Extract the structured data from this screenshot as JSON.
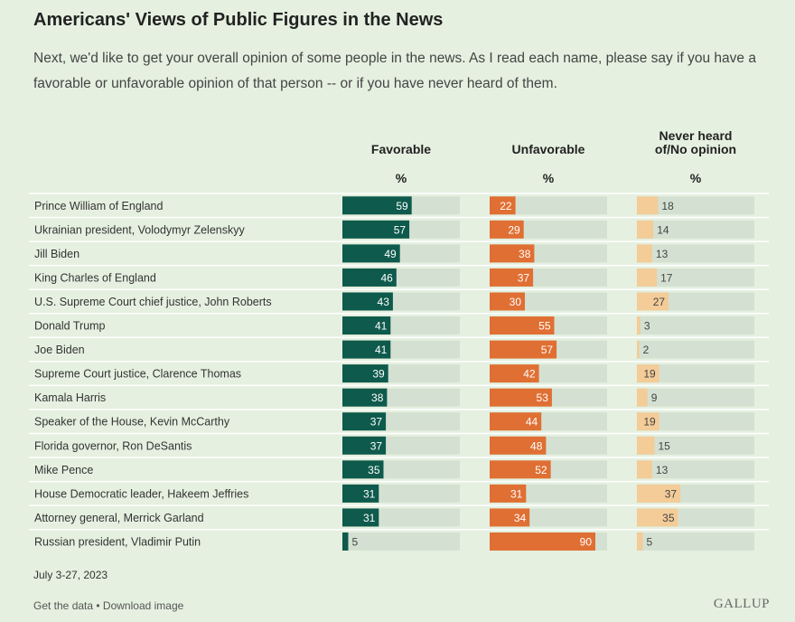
{
  "chart_data": {
    "type": "bar",
    "title": "Americans' Views of Public Figures in the News",
    "subtitle": "Next, we'd like to get your overall opinion of some people in the news. As I read each name, please say if you have a favorable or unfavorable opinion of that person -- or if you have never heard of them.",
    "columns": [
      {
        "key": "favorable",
        "label_lines": [
          "Favorable"
        ],
        "unit": "%",
        "color": "#0e5a4c",
        "track": "#d4e1d2",
        "label_inside_color": "#ffffff",
        "label_outside_color": "#444444"
      },
      {
        "key": "unfavorable",
        "label_lines": [
          "Unfavorable"
        ],
        "unit": "%",
        "color": "#e06f33",
        "track": "#d4e1d2",
        "label_inside_color": "#ffffff",
        "label_outside_color": "#444444"
      },
      {
        "key": "never_heard",
        "label_lines": [
          "Never heard",
          "of/No opinion"
        ],
        "unit": "%",
        "color": "#f3cc98",
        "track": "#d4e1d2",
        "label_inside_color": "#444444",
        "label_outside_color": "#444444"
      }
    ],
    "categories": [
      "Prince William of England",
      "Ukrainian president, Volodymyr Zelenskyy",
      "Jill Biden",
      "King Charles of England",
      "U.S. Supreme Court chief justice, John Roberts",
      "Donald Trump",
      "Joe Biden",
      "Supreme Court justice, Clarence Thomas",
      "Kamala Harris",
      "Speaker of the House, Kevin McCarthy",
      "Florida governor, Ron DeSantis",
      "Mike Pence",
      "House Democratic leader, Hakeem Jeffries",
      "Attorney general, Merrick Garland",
      "Russian president, Vladimir Putin"
    ],
    "series": [
      {
        "name": "Favorable",
        "values": [
          59,
          57,
          49,
          46,
          43,
          41,
          41,
          39,
          38,
          37,
          37,
          35,
          31,
          31,
          5
        ]
      },
      {
        "name": "Unfavorable",
        "values": [
          22,
          29,
          38,
          37,
          30,
          55,
          57,
          42,
          53,
          44,
          48,
          52,
          31,
          34,
          90
        ]
      },
      {
        "name": "Never heard of/No opinion",
        "values": [
          18,
          14,
          13,
          17,
          27,
          3,
          2,
          19,
          9,
          19,
          15,
          13,
          37,
          35,
          5
        ]
      }
    ],
    "xlim": [
      0,
      100
    ]
  },
  "footer": {
    "date": "July 3-27, 2023",
    "get_data": "Get the data",
    "separator": " • ",
    "download": "Download image",
    "brand": "GALLUP"
  }
}
